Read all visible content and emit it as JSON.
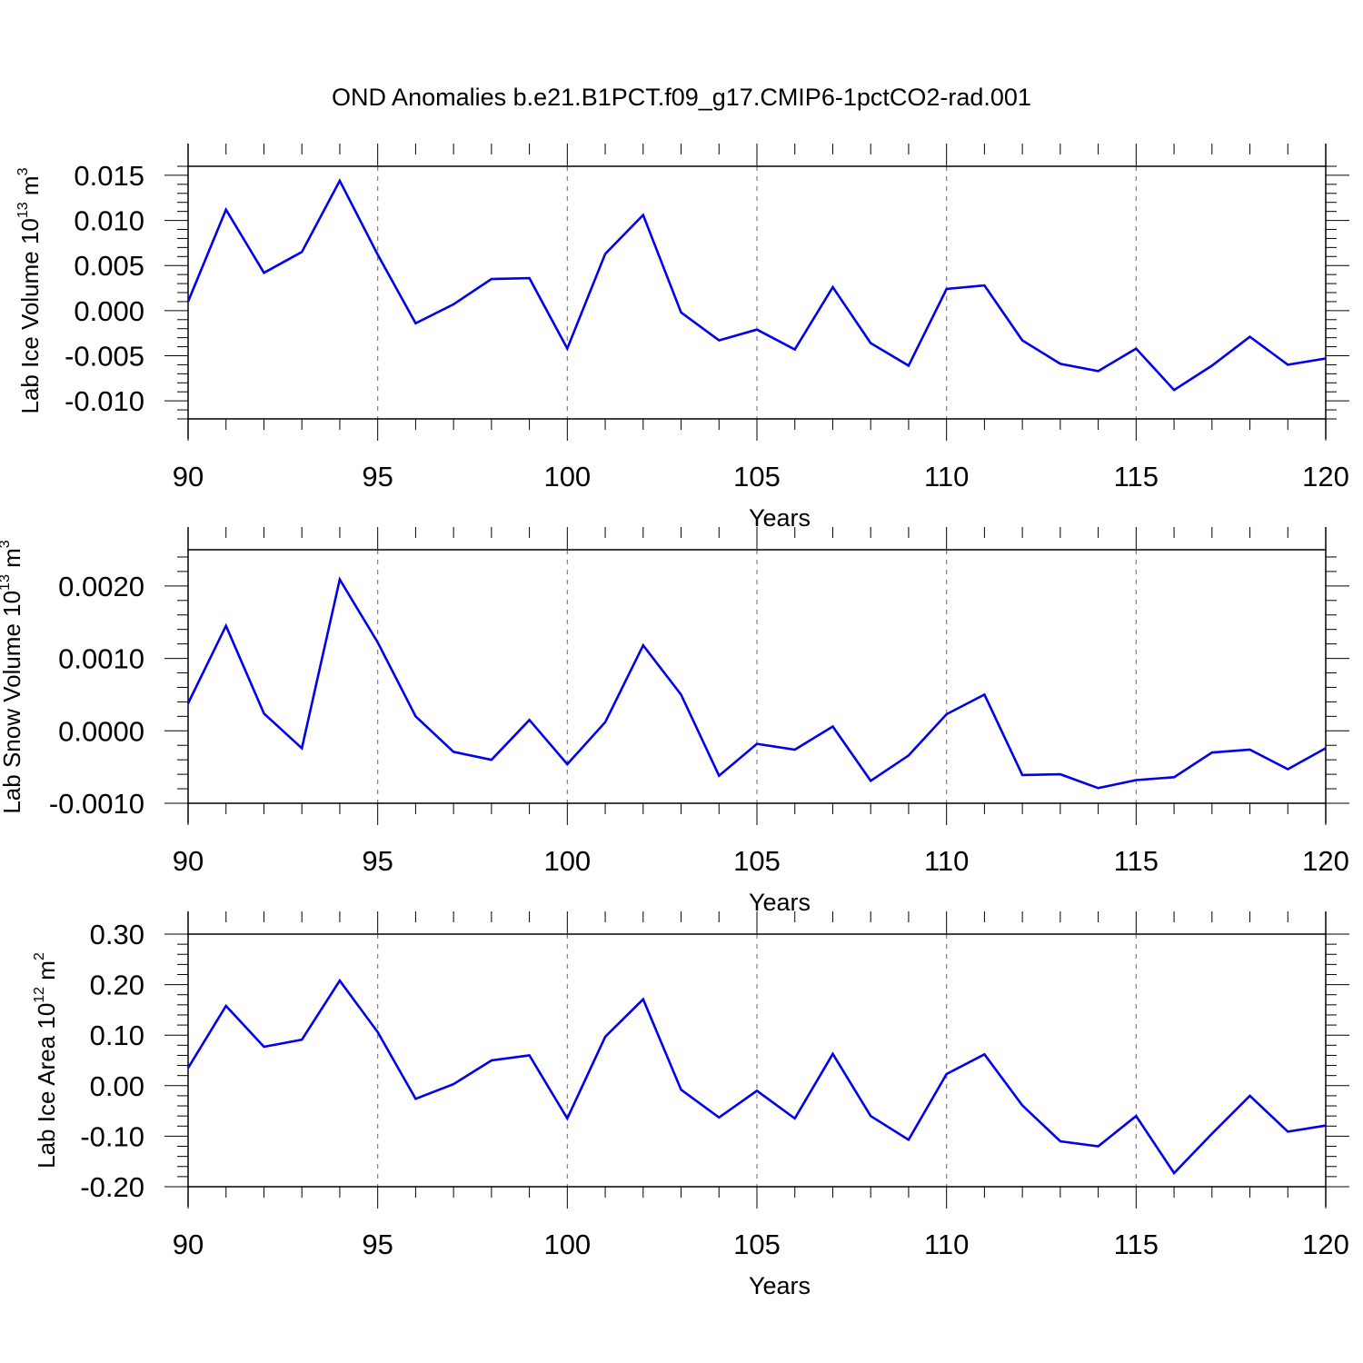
{
  "title": "OND Anomalies b.e21.B1PCT.f09_g17.CMIP6-1pctCO2-rad.001",
  "colors": {
    "line": "#0000ee",
    "axis": "#000000",
    "grid": "#7f7f7f"
  },
  "chart_data": [
    {
      "type": "line",
      "ylabel": "Lab Ice Volume 10",
      "ylabel_exp": "13",
      "ylabel_unit": "m",
      "ylabel_unit_exp": "3",
      "xlabel": "Years",
      "xlim": [
        90,
        120
      ],
      "ylim": [
        -0.012,
        0.016
      ],
      "xticks": [
        90,
        95,
        100,
        105,
        110,
        115,
        120
      ],
      "xtick_labels": [
        "90",
        "95",
        "100",
        "105",
        "110",
        "115",
        "120"
      ],
      "yticks": [
        -0.01,
        -0.005,
        0.0,
        0.005,
        0.01,
        0.015
      ],
      "ytick_labels": [
        "-0.010",
        "-0.005",
        "0.000",
        "0.005",
        "0.010",
        "0.015"
      ],
      "x": [
        90,
        91,
        92,
        93,
        94,
        95,
        96,
        97,
        98,
        99,
        100,
        101,
        102,
        103,
        104,
        105,
        106,
        107,
        108,
        109,
        110,
        111,
        112,
        113,
        114,
        115,
        116,
        117,
        118,
        119,
        120
      ],
      "values": [
        0.001,
        0.0112,
        0.0042,
        0.0065,
        0.0144,
        0.0062,
        -0.0014,
        0.0007,
        0.0035,
        0.0036,
        -0.0042,
        0.0063,
        0.0106,
        -0.0002,
        -0.0033,
        -0.0021,
        -0.0043,
        0.0026,
        -0.0036,
        -0.0061,
        0.0024,
        0.0028,
        -0.0033,
        -0.0059,
        -0.0067,
        -0.0042,
        -0.0088,
        -0.0061,
        -0.0029,
        -0.006,
        -0.0053
      ],
      "grid_x": [
        95,
        100,
        105,
        110,
        115
      ]
    },
    {
      "type": "line",
      "ylabel": "Lab Snow Volume 10",
      "ylabel_exp": "13",
      "ylabel_unit": "m",
      "ylabel_unit_exp": "3",
      "xlabel": "Years",
      "xlim": [
        90,
        120
      ],
      "ylim": [
        -0.001,
        0.0025
      ],
      "xticks": [
        90,
        95,
        100,
        105,
        110,
        115,
        120
      ],
      "xtick_labels": [
        "90",
        "95",
        "100",
        "105",
        "110",
        "115",
        "120"
      ],
      "yticks": [
        -0.001,
        0.0,
        0.001,
        0.002
      ],
      "ytick_labels": [
        "-0.0010",
        "0.0000",
        "0.0010",
        "0.0020"
      ],
      "x": [
        90,
        91,
        92,
        93,
        94,
        95,
        96,
        97,
        98,
        99,
        100,
        101,
        102,
        103,
        104,
        105,
        106,
        107,
        108,
        109,
        110,
        111,
        112,
        113,
        114,
        115,
        116,
        117,
        118,
        119,
        120
      ],
      "values": [
        0.00038,
        0.00145,
        0.00024,
        -0.00024,
        0.00209,
        0.00122,
        0.0002,
        -0.00029,
        -0.0004,
        0.00015,
        -0.00046,
        0.00012,
        0.00118,
        0.0005,
        -0.00062,
        -0.00018,
        -0.00026,
        6e-05,
        -0.00069,
        -0.00034,
        0.00023,
        0.0005,
        -0.00061,
        -0.0006,
        -0.00079,
        -0.00068,
        -0.00064,
        -0.0003,
        -0.00026,
        -0.00053,
        -0.00024
      ],
      "grid_x": [
        95,
        100,
        105,
        110,
        115
      ]
    },
    {
      "type": "line",
      "ylabel": "Lab Ice Area 10",
      "ylabel_exp": "12",
      "ylabel_unit": "m",
      "ylabel_unit_exp": "2",
      "xlabel": "Years",
      "xlim": [
        90,
        120
      ],
      "ylim": [
        -0.2,
        0.3
      ],
      "xticks": [
        90,
        95,
        100,
        105,
        110,
        115,
        120
      ],
      "xtick_labels": [
        "90",
        "95",
        "100",
        "105",
        "110",
        "115",
        "120"
      ],
      "yticks": [
        -0.2,
        -0.1,
        0.0,
        0.1,
        0.2,
        0.3
      ],
      "ytick_labels": [
        "-0.20",
        "-0.10",
        "0.00",
        "0.10",
        "0.20",
        "0.30"
      ],
      "x": [
        90,
        91,
        92,
        93,
        94,
        95,
        96,
        97,
        98,
        99,
        100,
        101,
        102,
        103,
        104,
        105,
        106,
        107,
        108,
        109,
        110,
        111,
        112,
        113,
        114,
        115,
        116,
        117,
        118,
        119,
        120
      ],
      "values": [
        0.035,
        0.158,
        0.077,
        0.091,
        0.208,
        0.106,
        -0.026,
        0.003,
        0.05,
        0.06,
        -0.065,
        0.097,
        0.171,
        -0.008,
        -0.063,
        -0.01,
        -0.065,
        0.063,
        -0.06,
        -0.107,
        0.023,
        0.062,
        -0.039,
        -0.11,
        -0.12,
        -0.06,
        -0.173,
        -0.095,
        -0.02,
        -0.091,
        -0.079
      ],
      "grid_x": [
        95,
        100,
        105,
        110,
        115
      ]
    }
  ]
}
